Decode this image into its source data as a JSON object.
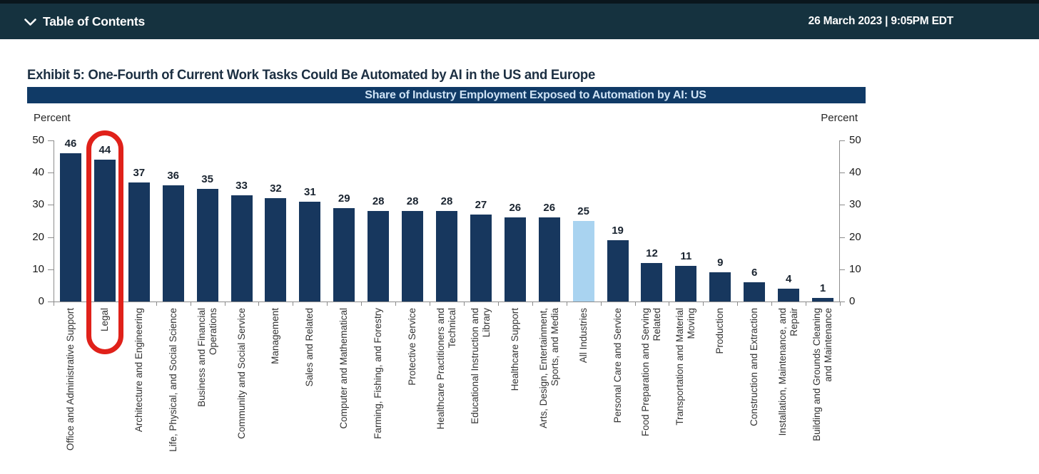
{
  "topbar": {
    "toc_label": "Table of Contents",
    "datetime": "26 March 2023 | 9:05PM EDT"
  },
  "exhibit": {
    "title": "Exhibit 5: One-Fourth of Current Work Tasks Could Be Automated by AI in the US and Europe"
  },
  "chart_data": {
    "type": "bar",
    "title": "Share of Industry Employment Exposed to Automation by AI: US",
    "axis_label_left": "Percent",
    "axis_label_right": "Percent",
    "ylim": [
      0,
      50
    ],
    "yticks": [
      0,
      10,
      20,
      30,
      40,
      50
    ],
    "grid": false,
    "legend": "none",
    "categories": [
      "Office and Administrative Support",
      "Legal",
      "Architecture and Engineering",
      "Life, Physical, and Social Science",
      "Business and Financial Operations",
      "Community and Social Service",
      "Management",
      "Sales and Related",
      "Computer and Mathematical",
      "Farming, Fishing, and Forestry",
      "Protective Service",
      "Healthcare Practitioners and Technical",
      "Educational Instruction and Library",
      "Healthcare Support",
      "Arts, Design, Entertainment, Sports, and Media",
      "All Industries",
      "Personal Care and Service",
      "Food Preparation and Serving Related",
      "Transportation and Material Moving",
      "Production",
      "Construction and Extraction",
      "Installation, Maintenance, and Repair",
      "Building and Grounds Cleaning and Maintenance"
    ],
    "values": [
      46,
      44,
      37,
      36,
      35,
      33,
      32,
      31,
      29,
      28,
      28,
      28,
      27,
      26,
      26,
      25,
      19,
      12,
      11,
      9,
      6,
      4,
      1
    ],
    "bar_color": "#17375e",
    "highlight_category": "All Industries",
    "highlight_color": "#a9d3f0",
    "annotation": {
      "type": "red-circle",
      "category": "Legal",
      "value": 44,
      "color": "#e0211a"
    }
  }
}
